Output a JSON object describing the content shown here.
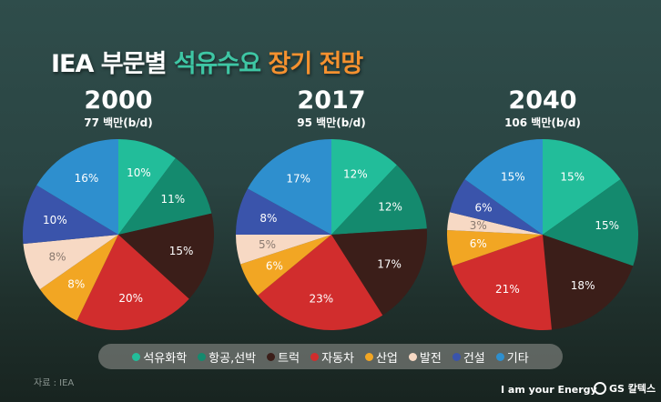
{
  "title": {
    "part1": "IEA 부문별",
    "part2": "석유수요",
    "part3": "장기 전망"
  },
  "chart_data": [
    {
      "type": "pie",
      "year": "2000",
      "unit": "77 백만(b/d)",
      "categories": [
        "석유화학",
        "항공,선박",
        "트럭",
        "자동차",
        "산업",
        "발전",
        "건설",
        "기타"
      ],
      "values": [
        10,
        11,
        15,
        20,
        8,
        8,
        10,
        16
      ]
    },
    {
      "type": "pie",
      "year": "2017",
      "unit": "95 백만(b/d)",
      "categories": [
        "석유화학",
        "항공,선박",
        "트럭",
        "자동차",
        "산업",
        "발전",
        "건설",
        "기타"
      ],
      "values": [
        12,
        12,
        17,
        23,
        6,
        5,
        8,
        17
      ]
    },
    {
      "type": "pie",
      "year": "2040",
      "unit": "106 백만(b/d)",
      "categories": [
        "석유화학",
        "항공,선박",
        "트럭",
        "자동차",
        "산업",
        "발전",
        "건설",
        "기타"
      ],
      "values": [
        15,
        15,
        18,
        21,
        6,
        3,
        6,
        15
      ]
    }
  ],
  "colors": [
    "#22bd9a",
    "#148a6e",
    "#3b1e19",
    "#d12d2d",
    "#f2a623",
    "#f7d9c4",
    "#3a54ab",
    "#2e8fce"
  ],
  "label_colors": [
    "#ffffff",
    "#ffffff",
    "#ffffff",
    "#ffffff",
    "#ffffff",
    "#8a7a70",
    "#ffffff",
    "#ffffff"
  ],
  "legend": [
    "석유화학",
    "항공,선박",
    "트럭",
    "자동차",
    "산업",
    "발전",
    "건설",
    "기타"
  ],
  "source": "자료 : IEA",
  "slogan": "I am your Energy",
  "brand": "GS 칼텍스"
}
